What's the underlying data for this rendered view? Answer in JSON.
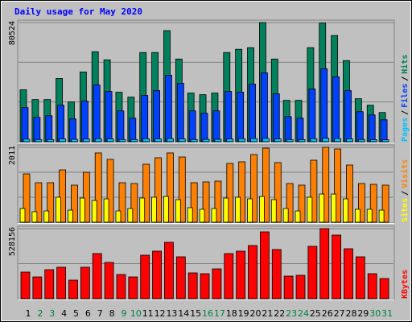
{
  "chart_data": [
    {
      "type": "bar",
      "title": "Daily usage for May 2020",
      "categories": [
        "1",
        "2",
        "3",
        "4",
        "5",
        "6",
        "7",
        "8",
        "9",
        "10",
        "11",
        "12",
        "13",
        "14",
        "15",
        "16",
        "17",
        "18",
        "19",
        "20",
        "21",
        "22",
        "23",
        "24",
        "25",
        "26",
        "27",
        "28",
        "29",
        "30",
        "31"
      ],
      "category_colors": [
        "#000000",
        "#008040",
        "#008040",
        "#000000",
        "#000000",
        "#000000",
        "#000000",
        "#000000",
        "#008040",
        "#008040",
        "#000000",
        "#000000",
        "#000000",
        "#000000",
        "#000000",
        "#008040",
        "#008040",
        "#000000",
        "#000000",
        "#000000",
        "#000000",
        "#000000",
        "#008040",
        "#008040",
        "#000000",
        "#000000",
        "#000000",
        "#000000",
        "#000000",
        "#008040",
        "#008040"
      ],
      "ylim": [
        0,
        80524
      ],
      "yticks": [
        80524
      ],
      "grid_divisions": 3,
      "separator": "/",
      "series": [
        {
          "name": "Hits",
          "color": "#00805c",
          "values": [
            35060,
            28480,
            28480,
            42730,
            26840,
            47110,
            60800,
            55330,
            33410,
            30130,
            60260,
            60260,
            75050,
            55870,
            32870,
            31770,
            32870,
            60260,
            62450,
            63540,
            80524,
            55870,
            27940,
            27940,
            63540,
            80100,
            71760,
            54780,
            29030,
            24650,
            19720
          ]
        },
        {
          "name": "Files",
          "color": "#0040ff",
          "values": [
            23010,
            16440,
            17530,
            24660,
            15340,
            27400,
            38360,
            33980,
            20820,
            15890,
            31240,
            34520,
            44940,
            39460,
            20820,
            19180,
            20820,
            33980,
            33430,
            38910,
            46580,
            32330,
            16990,
            15890,
            35620,
            49320,
            43840,
            34520,
            20280,
            18080,
            14800
          ]
        },
        {
          "name": "Pages",
          "color": "#00c0ff",
          "values": [
            1700,
            1500,
            1500,
            1900,
            1600,
            1800,
            2000,
            1900,
            1500,
            1500,
            2000,
            1900,
            2100,
            1900,
            1500,
            1600,
            1600,
            1900,
            2000,
            2100,
            2200,
            1900,
            1500,
            1400,
            2000,
            2300,
            2100,
            1900,
            1500,
            1400,
            1300
          ]
        }
      ]
    },
    {
      "type": "bar",
      "ylim": [
        0,
        2011
      ],
      "yticks": [
        2011
      ],
      "grid_divisions": 3,
      "separator": "/",
      "series": [
        {
          "name": "Visits",
          "color": "#ff8000",
          "values": [
            1297,
            1060,
            1060,
            1405,
            995,
            1340,
            1860,
            1687,
            1060,
            1038,
            1557,
            1730,
            1860,
            1751,
            1060,
            1081,
            1103,
            1578,
            1622,
            1816,
            1989,
            1600,
            1038,
            995,
            1665,
            2011,
            1968,
            1535,
            1038,
            1016,
            995
          ]
        },
        {
          "name": "Sites",
          "color": "#ffff00",
          "values": [
            367,
            281,
            302,
            670,
            324,
            648,
            583,
            626,
            302,
            367,
            648,
            670,
            691,
            605,
            389,
            346,
            367,
            648,
            670,
            626,
            691,
            605,
            367,
            302,
            670,
            756,
            756,
            626,
            346,
            346,
            324
          ]
        }
      ]
    },
    {
      "type": "bar",
      "ylim": [
        0,
        528156
      ],
      "yticks": [
        528156
      ],
      "grid_divisions": 2,
      "series": [
        {
          "name": "KBytes",
          "color": "#ff0000",
          "values": [
            200300,
            163900,
            218600,
            236800,
            139600,
            236800,
            340000,
            273200,
            182100,
            163900,
            327800,
            358200,
            425000,
            315700,
            194300,
            188200,
            224600,
            340000,
            358200,
            400700,
            503900,
            370300,
            170000,
            176100,
            394600,
            528156,
            479600,
            376400,
            315700,
            188200,
            151800
          ]
        }
      ]
    }
  ]
}
